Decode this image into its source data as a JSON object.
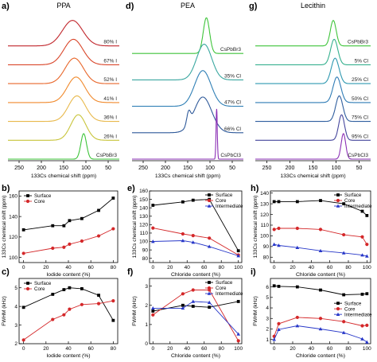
{
  "chart_data": [
    {
      "panel": "a",
      "type": "line",
      "title": "PPA",
      "xlabel": "133Cs chemical shift (ppm)",
      "xlim": [
        275,
        25
      ],
      "xticks": [
        "250",
        "200",
        "150",
        "100",
        "50"
      ],
      "xtick_values": [
        250,
        200,
        150,
        100,
        50
      ],
      "labels": [
        "80% I",
        "67% I",
        "52% I",
        "41% I",
        "36% I",
        "26% I",
        "CsPbBr3"
      ],
      "colors": [
        "#c1272d",
        "#d9462a",
        "#e8662a",
        "#f08a2d",
        "#e8b84a",
        "#c8c43a",
        "#3ec43a"
      ],
      "series": [
        {
          "name": "80% I",
          "center": 130,
          "width": 32
        },
        {
          "name": "67% I",
          "center": 128,
          "width": 30
        },
        {
          "name": "52% I",
          "center": 126,
          "width": 29
        },
        {
          "name": "41% I",
          "center": 122,
          "width": 28
        },
        {
          "name": "36% I",
          "center": 120,
          "width": 27
        },
        {
          "name": "26% I",
          "center": 117,
          "width": 24
        },
        {
          "name": "CsPbBr3",
          "center": 105,
          "width": 9
        }
      ]
    },
    {
      "panel": "d",
      "type": "line",
      "title": "PEA",
      "xlabel": "133Cs chemical shift (ppm)",
      "xlim": [
        275,
        25
      ],
      "xticks": [
        "250",
        "200",
        "150",
        "100",
        "50"
      ],
      "xtick_values": [
        250,
        200,
        150,
        100,
        50
      ],
      "labels": [
        "CsPbBr3",
        "35% Cl",
        "47% Cl",
        "66% Cl",
        "CsPbCl3"
      ],
      "colors": [
        "#3ec43a",
        "#3aa7a0",
        "#2f7fb5",
        "#2f5a9a",
        "#8b2fb5"
      ],
      "series": [
        {
          "name": "CsPbBr3",
          "center": 108,
          "width": 10
        },
        {
          "name": "35% Cl",
          "center": 113,
          "width": 24
        },
        {
          "name": "47% Cl",
          "center": 116,
          "width": 26
        },
        {
          "name": "66% Cl",
          "center": 116,
          "width": 28,
          "shoulder": 148
        },
        {
          "name": "CsPbCl3",
          "center": 85,
          "width": 2
        }
      ]
    },
    {
      "panel": "g",
      "type": "line",
      "title": "Lecithin",
      "xlabel": "133Cs chemical shift (ppm)",
      "xlim": [
        275,
        25
      ],
      "xticks": [
        "250",
        "200",
        "150",
        "100",
        "50"
      ],
      "xtick_values": [
        250,
        200,
        150,
        100,
        50
      ],
      "labels": [
        "CsPbBr3",
        "5% Cl",
        "25% Cl",
        "50% Cl",
        "75% Cl",
        "95% Cl",
        "CsPbCl3"
      ],
      "colors": [
        "#3ec43a",
        "#35b08e",
        "#2e98b0",
        "#2e7bb5",
        "#2f5e9e",
        "#44459c",
        "#8b2fb5"
      ],
      "series": [
        {
          "name": "CsPbBr3",
          "center": 106,
          "width": 9
        },
        {
          "name": "5% Cl",
          "center": 104,
          "width": 11
        },
        {
          "name": "25% Cl",
          "center": 102,
          "width": 12
        },
        {
          "name": "50% Cl",
          "center": 98,
          "width": 12
        },
        {
          "name": "75% Cl",
          "center": 93,
          "width": 11
        },
        {
          "name": "95% Cl",
          "center": 88,
          "width": 9
        },
        {
          "name": "CsPbCl3",
          "center": 84,
          "width": 7
        }
      ]
    },
    {
      "panel": "b",
      "type": "scatter",
      "xlabel": "Iodide content (%)",
      "ylabel": "133Cs chemical shift (ppm)",
      "xlim": [
        -4,
        84
      ],
      "ylim": [
        95,
        80
      ],
      "xticks": [
        0,
        20,
        40,
        60,
        80
      ],
      "yticks": [
        40,
        60,
        80,
        100,
        120,
        140,
        160
      ],
      "ylim_data": [
        95,
        165
      ],
      "legend": "top-left",
      "series": [
        {
          "name": "Surface",
          "color": "#000000",
          "marker": "square",
          "x": [
            0,
            26,
            36,
            41,
            52,
            67,
            80
          ],
          "y": [
            127,
            131,
            131,
            136,
            138,
            146,
            158
          ]
        },
        {
          "name": "Core",
          "color": "#d4282a",
          "marker": "circle",
          "x": [
            0,
            26,
            36,
            41,
            52,
            67,
            80
          ],
          "y": [
            104,
            109,
            110,
            113,
            116,
            121,
            128
          ]
        }
      ]
    },
    {
      "panel": "c",
      "type": "line",
      "xlabel": "Iodide content (%)",
      "ylabel": "FWHM (kHz)",
      "xlim": [
        -4,
        84
      ],
      "ylim": [
        2,
        5.5
      ],
      "xticks": [
        0,
        20,
        40,
        60,
        80
      ],
      "yticks": [
        2,
        3,
        4,
        5
      ],
      "legend": "top-left",
      "series": [
        {
          "name": "Surface",
          "color": "#000000",
          "marker": "square",
          "x": [
            0,
            26,
            36,
            41,
            52,
            67,
            80
          ],
          "y": [
            3.95,
            4.65,
            4.9,
            5.0,
            4.95,
            4.6,
            3.25
          ]
        },
        {
          "name": "Core",
          "color": "#d4282a",
          "marker": "circle",
          "x": [
            0,
            26,
            36,
            41,
            52,
            67,
            80
          ],
          "y": [
            2.2,
            3.3,
            3.55,
            3.85,
            4.1,
            4.15,
            4.3
          ]
        }
      ]
    },
    {
      "panel": "e",
      "type": "line",
      "xlabel": "Chloride content (%)",
      "ylabel": "133Cs chemical shift (ppm)",
      "xlim": [
        -4,
        104
      ],
      "ylim": [
        75,
        160
      ],
      "xticks": [
        0,
        20,
        40,
        60,
        80,
        100
      ],
      "yticks": [
        80,
        90,
        100,
        110,
        120,
        130,
        140,
        150,
        160
      ],
      "legend": "top-right",
      "series": [
        {
          "name": "Surface",
          "color": "#000000",
          "marker": "square",
          "x": [
            0,
            35,
            47,
            66,
            100
          ],
          "y": [
            143,
            147,
            149,
            150,
            89
          ]
        },
        {
          "name": "Core",
          "color": "#d4282a",
          "marker": "circle",
          "x": [
            0,
            35,
            47,
            66,
            100
          ],
          "y": [
            116,
            109,
            107,
            104,
            84
          ]
        },
        {
          "name": "Intermediate",
          "color": "#2636c8",
          "marker": "triangle",
          "x": [
            0,
            35,
            47,
            66,
            100
          ],
          "y": [
            100,
            101,
            99,
            94,
            83
          ]
        }
      ]
    },
    {
      "panel": "f",
      "type": "line",
      "xlabel": "Chloride content (%)",
      "ylabel": "FWHM (kHz)",
      "xlim": [
        -4,
        104
      ],
      "ylim": [
        0,
        3.4
      ],
      "xticks": [
        0,
        20,
        40,
        60,
        80,
        100
      ],
      "yticks": [
        0,
        1,
        2,
        3
      ],
      "legend": "top-right",
      "series": [
        {
          "name": "Surface",
          "color": "#000000",
          "marker": "square",
          "x": [
            0,
            35,
            47,
            66,
            100
          ],
          "y": [
            1.7,
            2.0,
            1.95,
            1.9,
            2.2
          ]
        },
        {
          "name": "Core",
          "color": "#d4282a",
          "marker": "circle",
          "x": [
            0,
            35,
            47,
            66,
            100
          ],
          "y": [
            1.5,
            2.6,
            2.8,
            2.8,
            0.15
          ]
        },
        {
          "name": "Intermediate",
          "color": "#2636c8",
          "marker": "triangle",
          "x": [
            0,
            35,
            47,
            66,
            100
          ],
          "y": [
            1.85,
            1.85,
            2.2,
            2.15,
            0.5
          ]
        }
      ]
    },
    {
      "panel": "h",
      "type": "line",
      "xlabel": "Chloride content (%)",
      "ylabel": "133Cs chemical shift (ppm)",
      "xlim": [
        -4,
        104
      ],
      "ylim": [
        75,
        142
      ],
      "xticks": [
        0,
        20,
        40,
        60,
        80,
        100
      ],
      "yticks": [
        80,
        90,
        100,
        110,
        120,
        130,
        140
      ],
      "legend": "top-right",
      "series": [
        {
          "name": "Surface",
          "color": "#000000",
          "marker": "square",
          "x": [
            0,
            5,
            25,
            50,
            75,
            95,
            100
          ],
          "y": [
            132,
            132,
            132,
            133,
            130,
            123,
            119
          ]
        },
        {
          "name": "Core",
          "color": "#d4282a",
          "marker": "circle",
          "x": [
            0,
            5,
            25,
            50,
            75,
            95,
            100
          ],
          "y": [
            106,
            107,
            107,
            106,
            101,
            99,
            92
          ]
        },
        {
          "name": "Intermediate",
          "color": "#2636c8",
          "marker": "triangle",
          "x": [
            0,
            5,
            25,
            50,
            75,
            95,
            100
          ],
          "y": [
            92,
            91,
            89,
            86,
            84,
            82,
            81
          ]
        }
      ]
    },
    {
      "panel": "i",
      "type": "line",
      "xlabel": "Chloride content (%)",
      "ylabel": "FWHM (kHz)",
      "xlim": [
        -4,
        104
      ],
      "ylim": [
        0.6,
        6.8
      ],
      "xticks": [
        0,
        20,
        40,
        60,
        80,
        100
      ],
      "yticks": [
        1,
        2,
        3,
        4,
        5,
        6
      ],
      "legend": "center-right",
      "series": [
        {
          "name": "Surface",
          "color": "#000000",
          "marker": "square",
          "x": [
            0,
            5,
            25,
            50,
            75,
            95,
            100
          ],
          "y": [
            6.1,
            6.05,
            6.0,
            5.7,
            5.25,
            5.3,
            5.35
          ]
        },
        {
          "name": "Core",
          "color": "#d4282a",
          "marker": "circle",
          "x": [
            0,
            5,
            25,
            50,
            75,
            95,
            100
          ],
          "y": [
            1.3,
            2.5,
            3.1,
            3.0,
            2.7,
            2.3,
            2.35
          ]
        },
        {
          "name": "Intermediate",
          "color": "#2636c8",
          "marker": "triangle",
          "x": [
            0,
            5,
            25,
            50,
            75,
            95,
            100
          ],
          "y": [
            1.0,
            1.95,
            2.3,
            2.0,
            1.65,
            1.05,
            0.75
          ]
        }
      ]
    }
  ],
  "panel_letters": [
    "a)",
    "d)",
    "g)",
    "b)",
    "e)",
    "h)",
    "c)",
    "f)",
    "i)"
  ]
}
